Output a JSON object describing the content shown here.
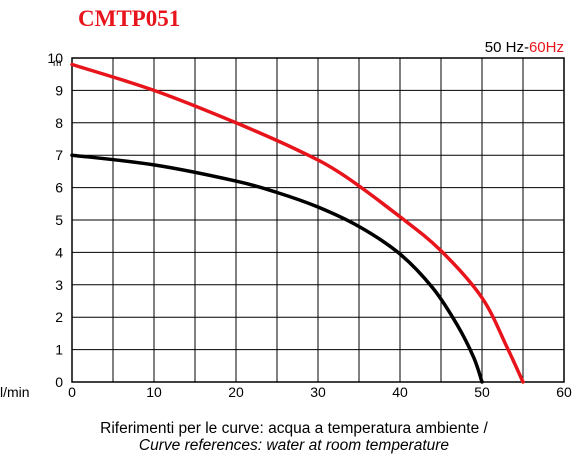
{
  "title": "CMTP051",
  "legend": {
    "label_50": "50 Hz",
    "separator": "-",
    "label_60": "60Hz"
  },
  "y_unit": "m",
  "x_unit": "l/min",
  "caption_it": "Riferimenti per le curve: acqua a temperatura ambiente /",
  "caption_en": "Curve references: water at room temperature",
  "colors": {
    "series_50": "#000000",
    "series_60": "#e8141b",
    "grid": "#000000"
  },
  "chart_data": {
    "type": "line",
    "title": "CMTP051",
    "xlabel": "l/min",
    "ylabel": "m",
    "xlim": [
      0,
      60
    ],
    "ylim": [
      0,
      10
    ],
    "x_ticks": [
      0,
      10,
      20,
      30,
      40,
      50,
      60
    ],
    "y_ticks": [
      0,
      1,
      2,
      3,
      4,
      5,
      6,
      7,
      8,
      9,
      10
    ],
    "grid": true,
    "legend_position": "top-right",
    "series": [
      {
        "name": "50 Hz",
        "color": "#000000",
        "x": [
          0,
          10,
          20,
          25,
          30,
          35,
          40,
          44,
          47,
          49,
          50
        ],
        "y": [
          7.0,
          6.7,
          6.2,
          5.85,
          5.4,
          4.8,
          3.95,
          2.9,
          1.75,
          0.75,
          0
        ]
      },
      {
        "name": "60Hz",
        "color": "#e8141b",
        "x": [
          0,
          10,
          20,
          28,
          33,
          40,
          45,
          50,
          53,
          55
        ],
        "y": [
          9.8,
          9.0,
          8.0,
          7.1,
          6.4,
          5.1,
          4.05,
          2.6,
          1.1,
          0
        ]
      }
    ]
  }
}
